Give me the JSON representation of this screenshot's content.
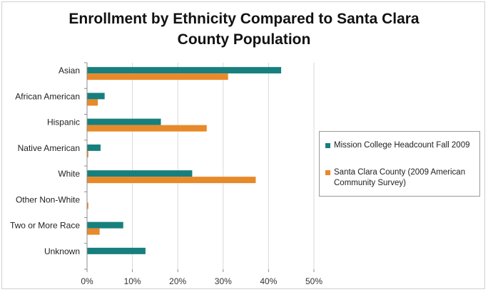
{
  "chart_data": {
    "type": "bar",
    "orientation": "horizontal",
    "title_lines": [
      "Enrollment by Ethnicity Compared to Santa Clara",
      "County Population"
    ],
    "categories": [
      "Asian",
      "African American",
      "Hispanic",
      "Native American",
      "White",
      "Other Non-White",
      "Two or More Race",
      "Unknown"
    ],
    "series": [
      {
        "name": "Mission College Headcount Fall 2009",
        "color": "#17807e",
        "values": [
          42.7,
          3.8,
          16.2,
          2.9,
          23.1,
          0.0,
          7.9,
          12.8
        ]
      },
      {
        "name": "Santa Clara County (2009 American Community Survey)",
        "color": "#e8892a",
        "values": [
          31.0,
          2.3,
          26.3,
          0.2,
          37.1,
          0.2,
          2.7,
          0.0
        ]
      }
    ],
    "xlim": [
      0,
      50
    ],
    "xticks": [
      "0%",
      "10%",
      "20%",
      "30%",
      "40%",
      "50%"
    ],
    "grid": true,
    "legend_position": "right"
  }
}
